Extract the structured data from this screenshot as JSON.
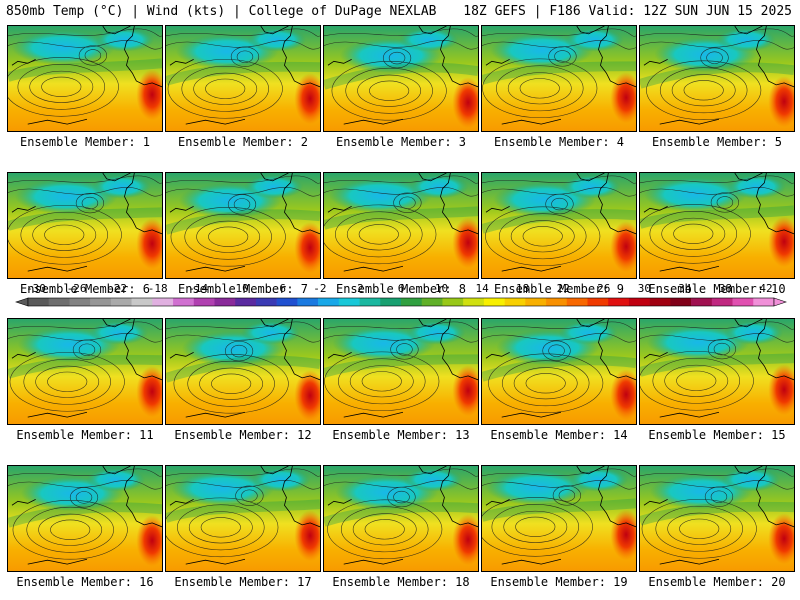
{
  "header": {
    "left": "850mb Temp (°C) | Wind (kts) | College of DuPage NEXLAB",
    "right": "18Z GEFS | F186 Valid: 12Z SUN JUN 15 2025"
  },
  "panels": [
    {
      "label": "Ensemble Member: 1"
    },
    {
      "label": "Ensemble Member: 2"
    },
    {
      "label": "Ensemble Member: 3"
    },
    {
      "label": "Ensemble Member: 4"
    },
    {
      "label": "Ensemble Member: 5"
    },
    {
      "label": "Ensemble Member: 6"
    },
    {
      "label": "Ensemble Member: 7"
    },
    {
      "label": "Ensemble Member: 8"
    },
    {
      "label": "Ensemble Member: 9"
    },
    {
      "label": "Ensemble Member: 10"
    },
    {
      "label": "Ensemble Member: 11"
    },
    {
      "label": "Ensemble Member: 12"
    },
    {
      "label": "Ensemble Member: 13"
    },
    {
      "label": "Ensemble Member: 14"
    },
    {
      "label": "Ensemble Member: 15"
    },
    {
      "label": "Ensemble Member: 16"
    },
    {
      "label": "Ensemble Member: 17"
    },
    {
      "label": "Ensemble Member: 18"
    },
    {
      "label": "Ensemble Member: 19"
    },
    {
      "label": "Ensemble Member: 20"
    }
  ],
  "colorbar": {
    "ticks": [
      "-30",
      "-26",
      "-22",
      "-18",
      "-14",
      "-10",
      "-6",
      "-2",
      "2",
      "6",
      "10",
      "14",
      "18",
      "22",
      "26",
      "30",
      "34",
      "38",
      "42"
    ],
    "colors": [
      "#5a5a5a",
      "#6e6e6e",
      "#828282",
      "#969696",
      "#aaaaaa",
      "#c8c8c8",
      "#e0b0e0",
      "#d070d0",
      "#b040b0",
      "#8a2a9a",
      "#5a2aa0",
      "#3a3ab4",
      "#2050d0",
      "#1a7ae0",
      "#18a8e8",
      "#18c8d8",
      "#1ab8a0",
      "#18a070",
      "#30a040",
      "#60b028",
      "#98c818",
      "#d0e010",
      "#f8f000",
      "#f8d000",
      "#f8b000",
      "#f89000",
      "#f86800",
      "#f03a00",
      "#e01010",
      "#c00010",
      "#a00010",
      "#800018",
      "#a01050",
      "#c02880",
      "#e050b0",
      "#f090d8"
    ]
  }
}
